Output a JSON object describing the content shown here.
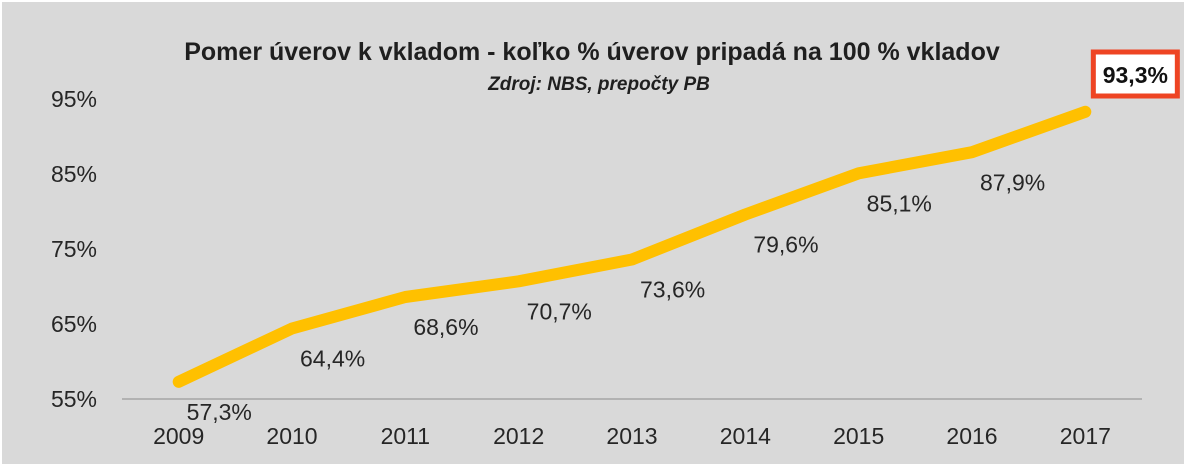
{
  "chart_data": {
    "type": "line",
    "title": "Pomer úverov k vkladom - koľko % úverov pripadá na 100 % vkladov",
    "subtitle": "Zdroj: NBS, prepočty PB",
    "x": [
      "2009",
      "2010",
      "2011",
      "2012",
      "2013",
      "2014",
      "2015",
      "2016",
      "2017"
    ],
    "values": [
      57.3,
      64.4,
      68.6,
      70.7,
      73.6,
      79.6,
      85.1,
      87.9,
      93.3
    ],
    "data_labels": [
      "57,3%",
      "64,4%",
      "68,6%",
      "70,7%",
      "73,6%",
      "79,6%",
      "85,1%",
      "87,9%",
      "93,3%"
    ],
    "y_ticks": [
      "55%",
      "65%",
      "75%",
      "85%",
      "95%"
    ],
    "ylim": [
      55,
      95
    ],
    "grid": false,
    "legend": "none",
    "highlighted_point": "93,3%",
    "colors": {
      "line": "#ffc000",
      "background": "#d9d9d9",
      "highlight_border": "#ee4423"
    }
  }
}
